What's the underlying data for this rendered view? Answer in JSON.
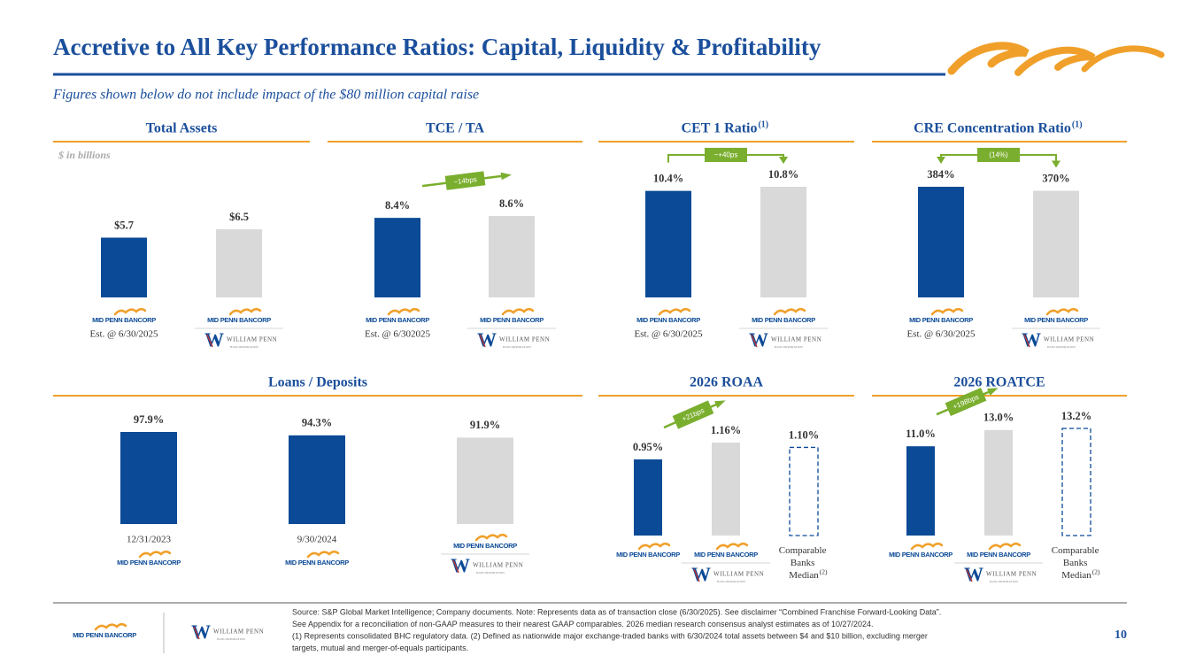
{
  "title": "Accretive to All Key Performance Ratios: Capital, Liquidity & Profitability",
  "subtitle": "Figures shown below do not include impact of the $80 million capital raise",
  "logos": {
    "mid_penn": "MID PENN BANCORP",
    "william_penn": "WILLIAM PENN",
    "william_penn_sub": "BANCORPORATION"
  },
  "chart_data": [
    {
      "type": "bar",
      "title": "Total Assets",
      "note": "$ in billions",
      "categories": [
        "Est. @ 6/30/2025",
        null
      ],
      "values": [
        5.7,
        6.5
      ],
      "value_labels": [
        "$5.7",
        "$6.5"
      ],
      "colors": [
        "#0B4A96",
        "#D9D9D9"
      ],
      "dashed": [
        false,
        false
      ],
      "logos": [
        "mid_penn",
        "combined"
      ]
    },
    {
      "type": "bar",
      "title": "TCE / TA",
      "categories": [
        "Est. @ 6/302025",
        null
      ],
      "values": [
        8.4,
        8.6
      ],
      "value_labels": [
        "8.4%",
        "8.6%"
      ],
      "colors": [
        "#0B4A96",
        "#D9D9D9"
      ],
      "dashed": [
        false,
        false
      ],
      "logos": [
        "mid_penn",
        "combined"
      ],
      "annotation": "~14bps",
      "annotation_style": "diagonal",
      "annotation_color": "#7AAE2E"
    },
    {
      "type": "bar",
      "title": "CET 1 Ratio",
      "title_note": "(1)",
      "categories": [
        "Est. @ 6/30/2025",
        null
      ],
      "values": [
        10.4,
        10.8
      ],
      "value_labels": [
        "10.4%",
        "10.8%"
      ],
      "colors": [
        "#0B4A96",
        "#D9D9D9"
      ],
      "dashed": [
        false,
        false
      ],
      "logos": [
        "mid_penn",
        "combined"
      ],
      "annotation": "~+40ps",
      "annotation_style": "bracket",
      "annotation_color": "#7AAE2E"
    },
    {
      "type": "bar",
      "title": "CRE Concentration Ratio",
      "title_note": "(1)",
      "categories": [
        "Est. @ 6/30/2025",
        null
      ],
      "values": [
        384,
        370
      ],
      "value_labels": [
        "384%",
        "370%"
      ],
      "colors": [
        "#0B4A96",
        "#D9D9D9"
      ],
      "dashed": [
        false,
        false
      ],
      "logos": [
        "mid_penn",
        "combined"
      ],
      "annotation": "(14%)",
      "annotation_style": "bracket",
      "annotation_color": "#7AAE2E"
    },
    {
      "type": "bar",
      "title": "Loans / Deposits",
      "categories": [
        "12/31/2023",
        "9/30/2024",
        null
      ],
      "values": [
        97.9,
        94.3,
        91.9
      ],
      "value_labels": [
        "97.9%",
        "94.3%",
        "91.9%"
      ],
      "colors": [
        "#0B4A96",
        "#0B4A96",
        "#D9D9D9"
      ],
      "dashed": [
        false,
        false,
        false
      ],
      "logos": [
        "mid_penn",
        "mid_penn",
        "combined"
      ]
    },
    {
      "type": "bar",
      "title": "2026 ROAA",
      "categories": [
        null,
        null,
        "Comparable Banks Median"
      ],
      "category_note": "(2)",
      "values": [
        0.95,
        1.16,
        1.1
      ],
      "value_labels": [
        "0.95%",
        "1.16%",
        "1.10%"
      ],
      "colors": [
        "#0B4A96",
        "#D9D9D9",
        "#0B4A96"
      ],
      "dashed": [
        false,
        false,
        true
      ],
      "logos": [
        "mid_penn",
        "combined",
        null
      ],
      "annotation": "+21bps",
      "annotation_style": "diagonal",
      "annotation_color": "#7AAE2E"
    },
    {
      "type": "bar",
      "title": "2026 ROATCE",
      "categories": [
        null,
        null,
        "Comparable Banks Median"
      ],
      "category_note": "(2)",
      "values": [
        11.0,
        13.0,
        13.2
      ],
      "value_labels": [
        "11.0%",
        "13.0%",
        "13.2%"
      ],
      "colors": [
        "#0B4A96",
        "#D9D9D9",
        "#0B4A96"
      ],
      "dashed": [
        false,
        false,
        true
      ],
      "logos": [
        "mid_penn",
        "combined",
        null
      ],
      "annotation": "+198bps",
      "annotation_style": "diagonal",
      "annotation_color": "#7AAE2E"
    }
  ],
  "footer": {
    "source": [
      "Source: S&P Global Market Intelligence; Company documents. Note: Represents data as of transaction close (6/30/2025). See disclaimer “Combined Franchise Forward-Looking Data”.",
      "See Appendix for a reconciliation of non-GAAP measures to their nearest GAAP comparables. 2026 median research consensus analyst estimates as of 10/27/2024.",
      "(1) Represents consolidated BHC regulatory data. (2) Defined as nationwide major exchange-traded banks with 6/30/2024 total assets between $4 and $10 billion, excluding merger",
      "targets, mutual and merger-of-equals participants."
    ],
    "page_number": "10"
  }
}
